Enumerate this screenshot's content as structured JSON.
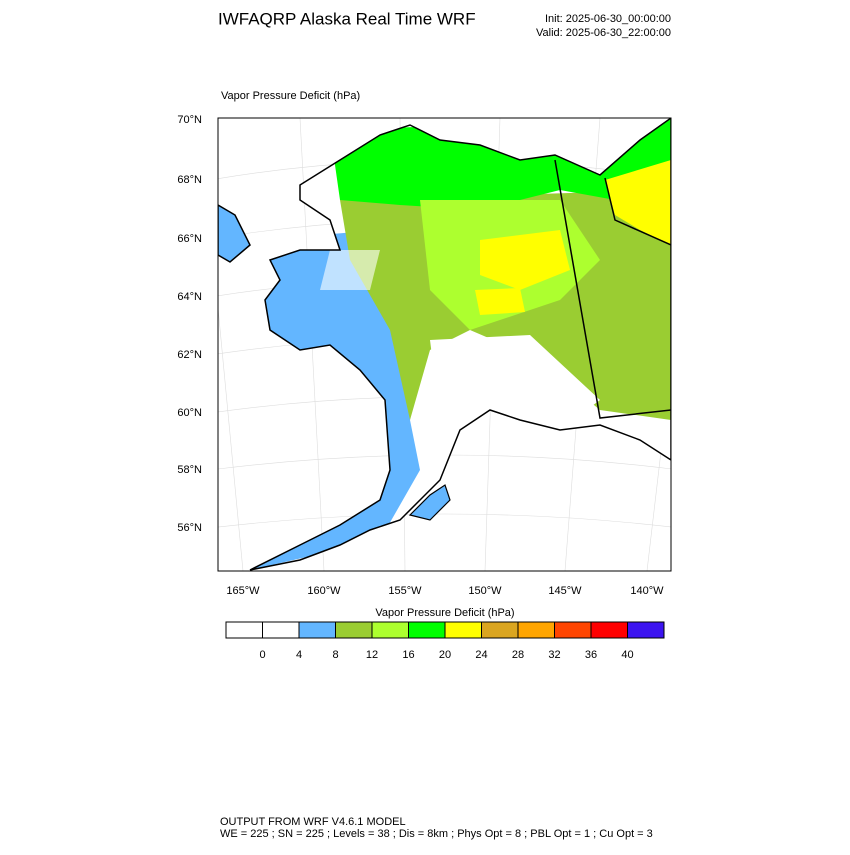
{
  "header": {
    "title": "IWFAQRP Alaska Real Time WRF",
    "init": "Init: 2025-06-30_00:00:00",
    "valid": "Valid: 2025-06-30_22:00:00"
  },
  "map": {
    "title": "Vapor Pressure Deficit   (hPa)",
    "lat_labels": [
      "70°N",
      "68°N",
      "66°N",
      "64°N",
      "62°N",
      "60°N",
      "58°N",
      "56°N"
    ],
    "lon_labels": [
      "165°W",
      "160°W",
      "155°W",
      "150°W",
      "145°W",
      "140°W"
    ]
  },
  "colorbar": {
    "title": "Vapor Pressure Deficit  (hPa)",
    "colors": [
      "#ffffff",
      "#ffffff",
      "#63b6ff",
      "#9acd32",
      "#adff2f",
      "#00ff00",
      "#ffff00",
      "#daa520",
      "#ffa500",
      "#ff4500",
      "#ff0000",
      "#3c14f0"
    ],
    "ticks": [
      0,
      4,
      8,
      12,
      16,
      20,
      24,
      28,
      32,
      36,
      40
    ]
  },
  "footer": {
    "line1": "OUTPUT FROM WRF V4.6.1 MODEL",
    "line2": "WE = 225 ; SN = 225 ; Levels = 38 ; Dis = 8km ; Phys Opt = 8 ; PBL Opt = 1 ; Cu Opt = 3"
  }
}
